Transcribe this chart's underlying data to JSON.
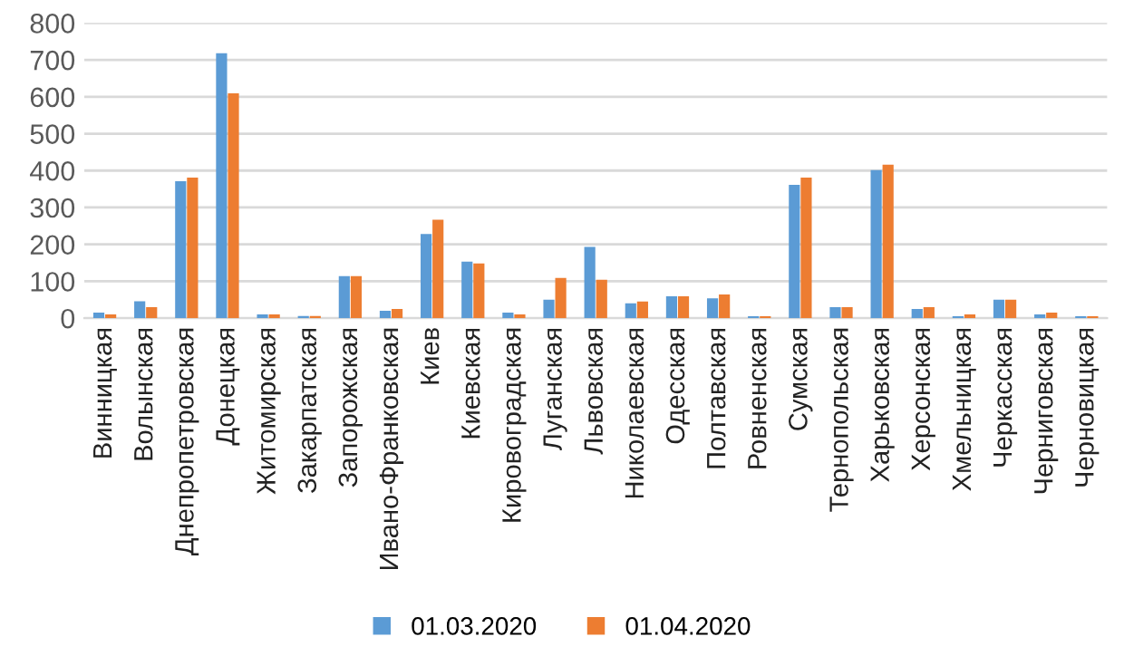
{
  "chart_data": {
    "type": "bar",
    "categories": [
      "Винницкая",
      "Волынская",
      "Днепропетровская",
      "Донецкая",
      "Житомирская",
      "Закарпатская",
      "Запорожская",
      "Ивано-Франковская",
      "Киев",
      "Киевская",
      "Кировоградская",
      "Луганская",
      "Львовская",
      "Николаевская",
      "Одесская",
      "Полтавская",
      "Ровненская",
      "Сумская",
      "Тернопольская",
      "Харьковская",
      "Херсонская",
      "Хмельницкая",
      "Черкасская",
      "Черниговская",
      "Черновицкая"
    ],
    "series": [
      {
        "name": "01.03.2020",
        "color": "#5b9bd5",
        "values": [
          15,
          46,
          371,
          718,
          10,
          6,
          114,
          20,
          228,
          153,
          15,
          50,
          193,
          40,
          59,
          54,
          5,
          361,
          30,
          401,
          25,
          5,
          50,
          10,
          5
        ]
      },
      {
        "name": "01.04.2020",
        "color": "#ed7d31",
        "values": [
          10,
          30,
          381,
          609,
          10,
          6,
          114,
          25,
          267,
          148,
          10,
          109,
          104,
          45,
          59,
          64,
          5,
          381,
          30,
          416,
          30,
          10,
          50,
          15,
          5
        ]
      }
    ],
    "ylim": [
      0,
      800
    ],
    "yticks": [
      0,
      100,
      200,
      300,
      400,
      500,
      600,
      700,
      800
    ],
    "grid": "y",
    "legend": "bottom"
  }
}
